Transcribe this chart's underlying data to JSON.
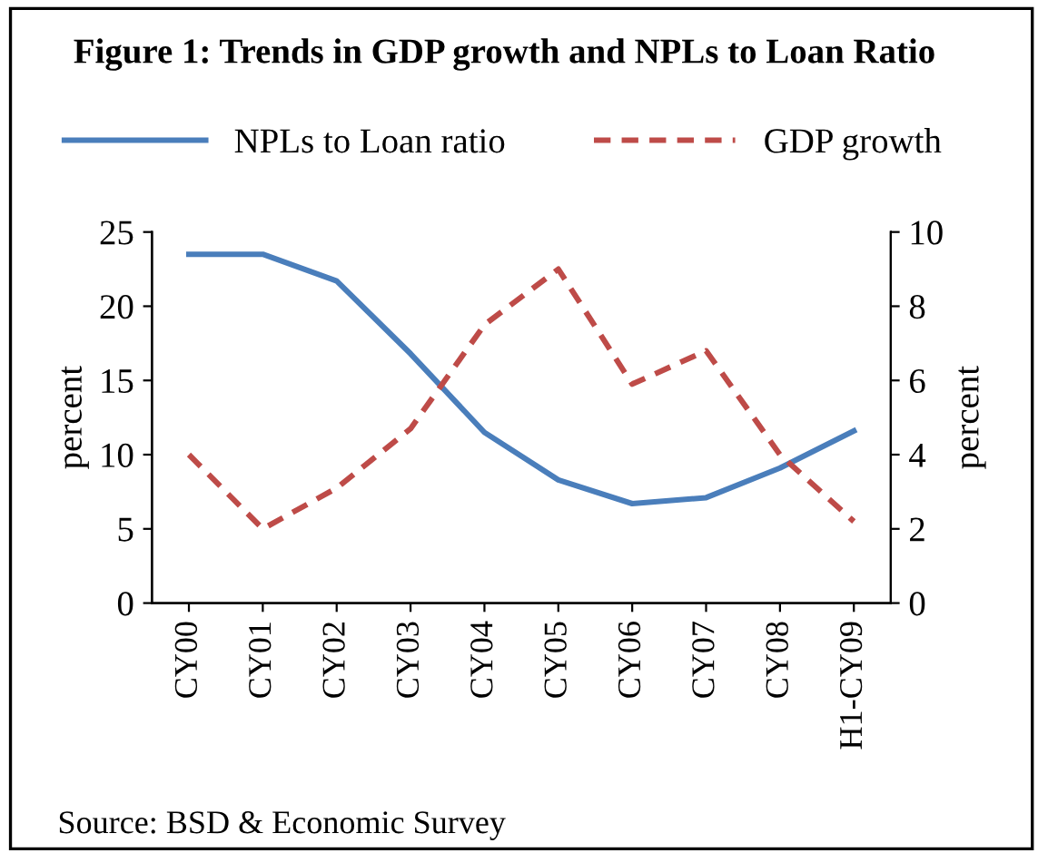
{
  "chart_data": {
    "type": "line",
    "title": "Figure 1: Trends in GDP growth and NPLs to Loan Ratio",
    "ylabel": "percent",
    "y2label": "percent",
    "categories": [
      "CY00",
      "CY01",
      "CY02",
      "CY03",
      "CY04",
      "CY05",
      "CY06",
      "CY07",
      "CY08",
      "H1-CY09"
    ],
    "series": [
      {
        "name": "NPLs to Loan ratio",
        "color": "#4a7ebb",
        "line_style": "solid",
        "values": [
          23.5,
          23.5,
          21.7,
          16.8,
          11.5,
          8.3,
          6.7,
          7.1,
          9.1,
          11.6
        ]
      },
      {
        "name": "GDP growth",
        "color": "#be4b48",
        "line_style": "dashed",
        "axis": "y2",
        "values": [
          4.0,
          2.0,
          3.1,
          4.7,
          7.5,
          9.0,
          5.9,
          6.8,
          4.0,
          2.2
        ]
      }
    ],
    "ylim": [
      0,
      25
    ],
    "yticks": [
      0,
      5,
      10,
      15,
      20,
      25
    ],
    "y2lim": [
      0,
      10
    ],
    "y2ticks": [
      0,
      2,
      4,
      6,
      8,
      10
    ],
    "legend": "top",
    "grid": false,
    "marker": "none",
    "annotations": [
      "Source: BSD & Economic Survey"
    ]
  }
}
